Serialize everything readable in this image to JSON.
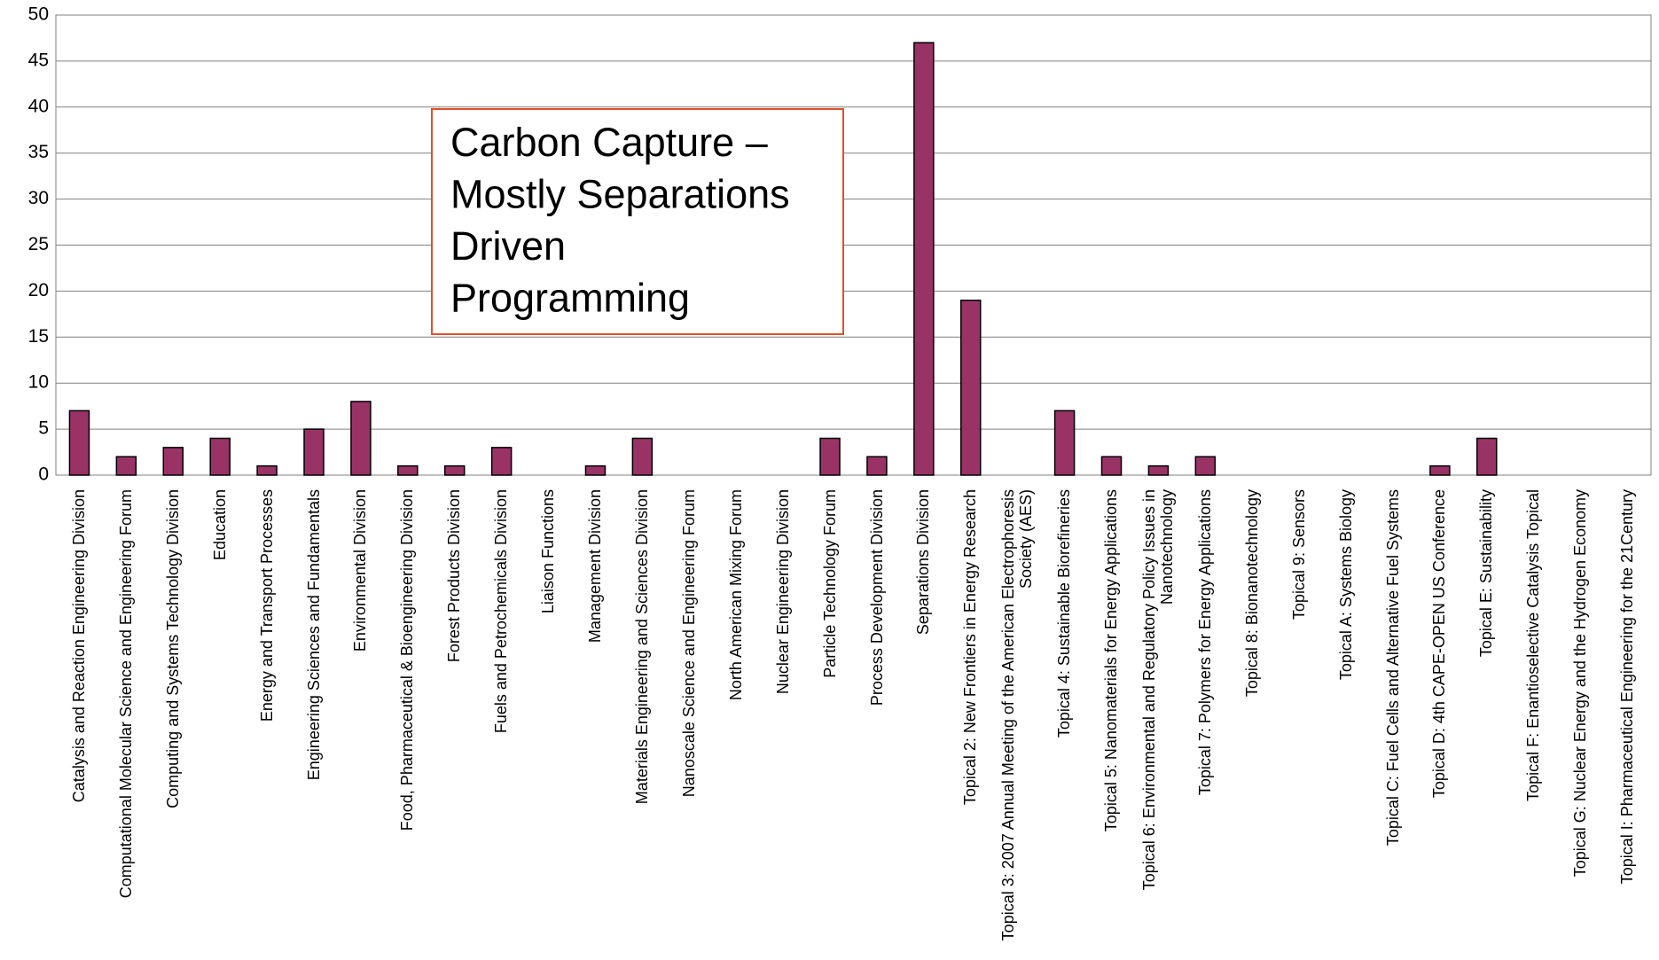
{
  "chart_data": {
    "type": "bar",
    "categories": [
      "Catalysis and Reaction Engineering Division",
      "Computational Molecular Science and Engineering Forum",
      "Computing and Systems Technology Division",
      "Education",
      "Energy and Transport Processes",
      "Engineering Sciences and Fundamentals",
      "Environmental Division",
      "Food, Pharmaceutical & Bioengineering Division",
      "Forest Products Division",
      "Fuels and Petrochemicals Division",
      "Liaison Functions",
      "Management Division",
      "Materials Engineering and Sciences Division",
      "Nanoscale Science and Engineering Forum",
      "North American Mixing Forum",
      "Nuclear Engineering Division",
      "Particle Technology Forum",
      "Process Development Division",
      "Separations Division",
      "Topical 2: New Frontiers in Energy Research",
      "Topical 3: 2007 Annual Meeting of the American Electrophoresis Society (AES)",
      "Topical 4: Sustainable Biorefineries",
      "Topical 5: Nanomaterials for Energy Applications",
      "Topical 6: Environmental and Regulatory Policy Issues in Nanotechnology",
      "Topical 7: Polymers for Energy Applications",
      "Topical 8: Bionanotechnology",
      "Topical 9: Sensors",
      "Topical A: Systems Biology",
      "Topical C: Fuel Cells and Alternative Fuel Systems",
      "Topical D: 4th CAPE-OPEN US Conference",
      "Topical E: Sustainability",
      "Topical F: Enantioselective Catalysis Topical",
      "Topical G: Nuclear Energy and the Hydrogen Economy",
      "Topical I: Pharmaceutical Engineering for the 21Century"
    ],
    "values": [
      7,
      2,
      3,
      4,
      1,
      5,
      8,
      1,
      1,
      3,
      0,
      1,
      4,
      0,
      0,
      0,
      4,
      2,
      47,
      19,
      0,
      7,
      2,
      1,
      2,
      0,
      0,
      0,
      0,
      1,
      4,
      0,
      0,
      0
    ],
    "color": "#993366",
    "ylim": [
      0,
      50
    ],
    "yticks": [
      0,
      5,
      10,
      15,
      20,
      25,
      30,
      35,
      40,
      45,
      50
    ],
    "grid": true,
    "annotation": [
      "Carbon Capture –",
      "Mostly Separations",
      "Driven",
      "Programming"
    ]
  }
}
